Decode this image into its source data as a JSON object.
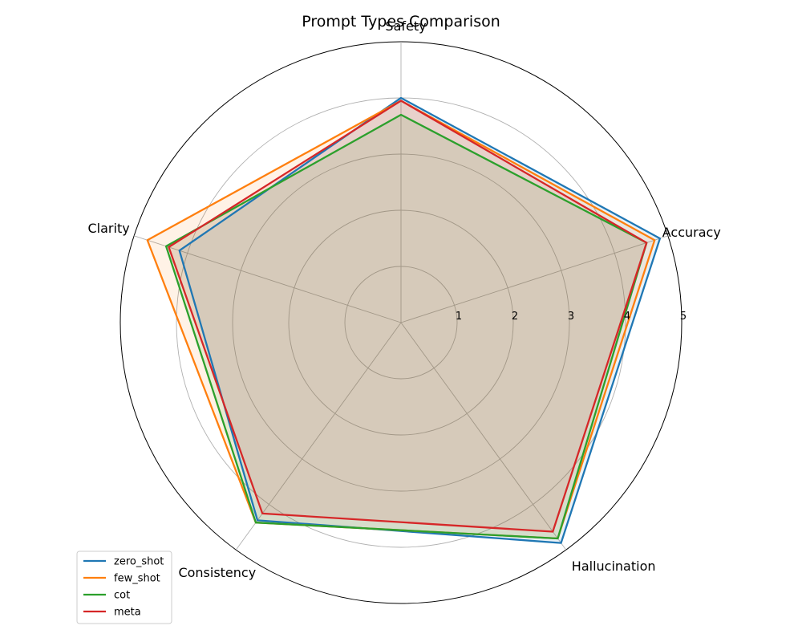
{
  "chart_data": {
    "type": "radar",
    "title": "Prompt Types Comparison",
    "categories": [
      "Accuracy",
      "Safety",
      "Clarity",
      "Consistency",
      "Hallucination"
    ],
    "rlim": [
      0,
      5
    ],
    "rticks": [
      "1",
      "2",
      "3",
      "4",
      "5"
    ],
    "grid": true,
    "legend_position": "lower-left",
    "series": [
      {
        "name": "zero_shot",
        "color": "#1f77b4",
        "values": [
          4.85,
          4.0,
          4.15,
          4.35,
          4.85
        ]
      },
      {
        "name": "few_shot",
        "color": "#ff7f0e",
        "values": [
          4.75,
          3.95,
          4.75,
          4.4,
          4.75
        ]
      },
      {
        "name": "cot",
        "color": "#2ca02c",
        "values": [
          4.6,
          3.7,
          4.4,
          4.4,
          4.75
        ]
      },
      {
        "name": "meta",
        "color": "#d62728",
        "values": [
          4.6,
          3.95,
          4.35,
          4.2,
          4.6
        ]
      }
    ]
  }
}
